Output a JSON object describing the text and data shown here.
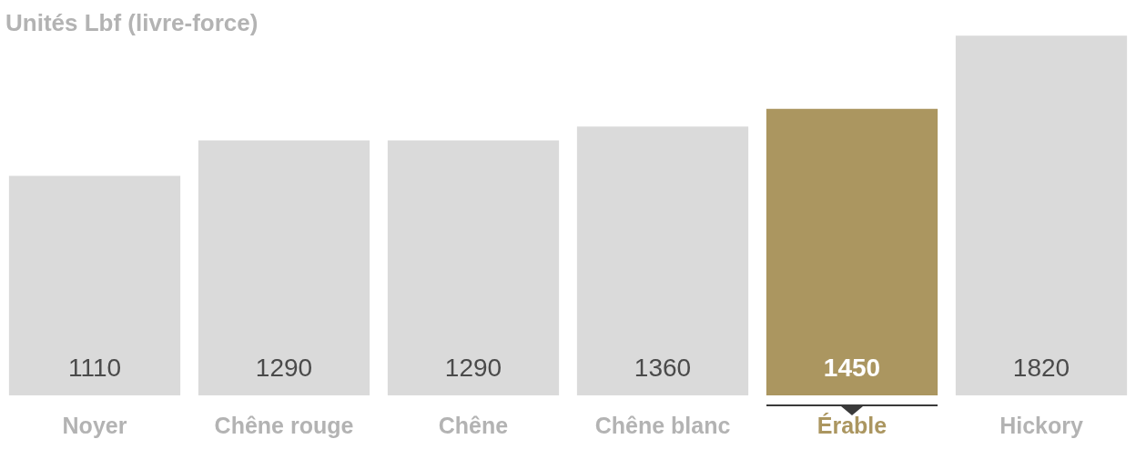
{
  "chart_data": {
    "type": "bar",
    "title": "Unités Lbf (livre-force)",
    "categories": [
      "Noyer",
      "Chêne rouge",
      "Chêne",
      "Chêne blanc",
      "Érable",
      "Hickory"
    ],
    "values": [
      1110,
      1290,
      1290,
      1360,
      1450,
      1820
    ],
    "colors": [
      "#dadada",
      "#dadada",
      "#dadada",
      "#dadada",
      "#ab9660",
      "#dadada"
    ],
    "tick_labels": "x",
    "grid": false,
    "legend": false,
    "data_labels": true
  }
}
